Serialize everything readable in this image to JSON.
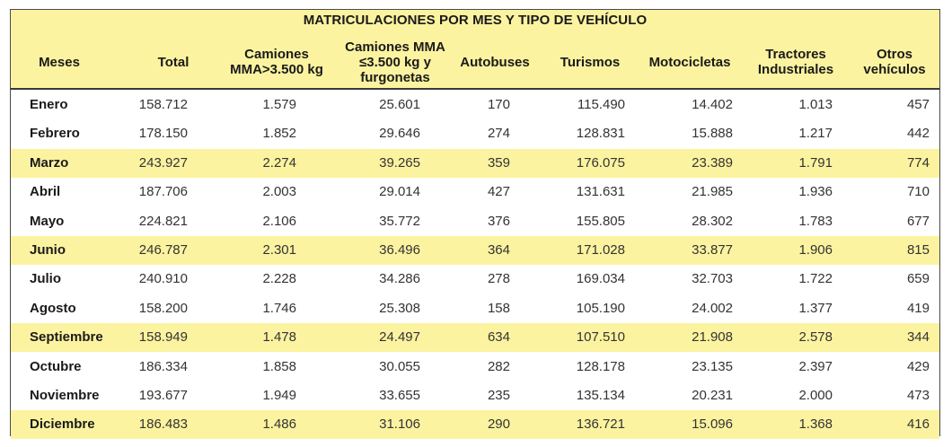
{
  "title": "MATRICULACIONES POR MES Y TIPO DE VEHÍCULO",
  "colors": {
    "header_bg": "#fcf3a0",
    "highlight_row_bg": "#fcf3a0",
    "border": "#3a3a3a"
  },
  "headers": [
    "Meses",
    "Total",
    "Camiones\nMMA>3.500 kg",
    "Camiones MMA\n≤3.500 kg y\nfurgonetas",
    "Autobuses",
    "Turismos",
    "Motocicletas",
    "Tractores\nIndustriales",
    "Otros\nvehículos"
  ],
  "rows": [
    {
      "month": "Enero",
      "values": [
        "158.712",
        "1.579",
        "25.601",
        "170",
        "115.490",
        "14.402",
        "1.013",
        "457"
      ],
      "highlight": false
    },
    {
      "month": "Febrero",
      "values": [
        "178.150",
        "1.852",
        "29.646",
        "274",
        "128.831",
        "15.888",
        "1.217",
        "442"
      ],
      "highlight": false
    },
    {
      "month": "Marzo",
      "values": [
        "243.927",
        "2.274",
        "39.265",
        "359",
        "176.075",
        "23.389",
        "1.791",
        "774"
      ],
      "highlight": true
    },
    {
      "month": "Abril",
      "values": [
        "187.706",
        "2.003",
        "29.014",
        "427",
        "131.631",
        "21.985",
        "1.936",
        "710"
      ],
      "highlight": false
    },
    {
      "month": "Mayo",
      "values": [
        "224.821",
        "2.106",
        "35.772",
        "376",
        "155.805",
        "28.302",
        "1.783",
        "677"
      ],
      "highlight": false
    },
    {
      "month": "Junio",
      "values": [
        "246.787",
        "2.301",
        "36.496",
        "364",
        "171.028",
        "33.877",
        "1.906",
        "815"
      ],
      "highlight": true
    },
    {
      "month": "Julio",
      "values": [
        "240.910",
        "2.228",
        "34.286",
        "278",
        "169.034",
        "32.703",
        "1.722",
        "659"
      ],
      "highlight": false
    },
    {
      "month": "Agosto",
      "values": [
        "158.200",
        "1.746",
        "25.308",
        "158",
        "105.190",
        "24.002",
        "1.377",
        "419"
      ],
      "highlight": false
    },
    {
      "month": "Septiembre",
      "values": [
        "158.949",
        "1.478",
        "24.497",
        "634",
        "107.510",
        "21.908",
        "2.578",
        "344"
      ],
      "highlight": true
    },
    {
      "month": "Octubre",
      "values": [
        "186.334",
        "1.858",
        "30.055",
        "282",
        "128.178",
        "23.135",
        "2.397",
        "429"
      ],
      "highlight": false
    },
    {
      "month": "Noviembre",
      "values": [
        "193.677",
        "1.949",
        "33.655",
        "235",
        "135.134",
        "20.231",
        "2.000",
        "473"
      ],
      "highlight": false
    },
    {
      "month": "Diciembre",
      "values": [
        "186.483",
        "1.486",
        "31.106",
        "290",
        "136.721",
        "15.096",
        "1.368",
        "416"
      ],
      "highlight": true
    }
  ]
}
